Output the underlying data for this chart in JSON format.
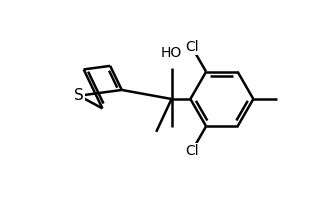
{
  "background_color": "#ffffff",
  "line_color": "#000000",
  "line_width": 1.8,
  "font_size": 10,
  "figsize": [
    3.3,
    1.98
  ],
  "dpi": 100,
  "xlim": [
    -2.8,
    4.2
  ],
  "ylim": [
    -2.2,
    2.2
  ]
}
